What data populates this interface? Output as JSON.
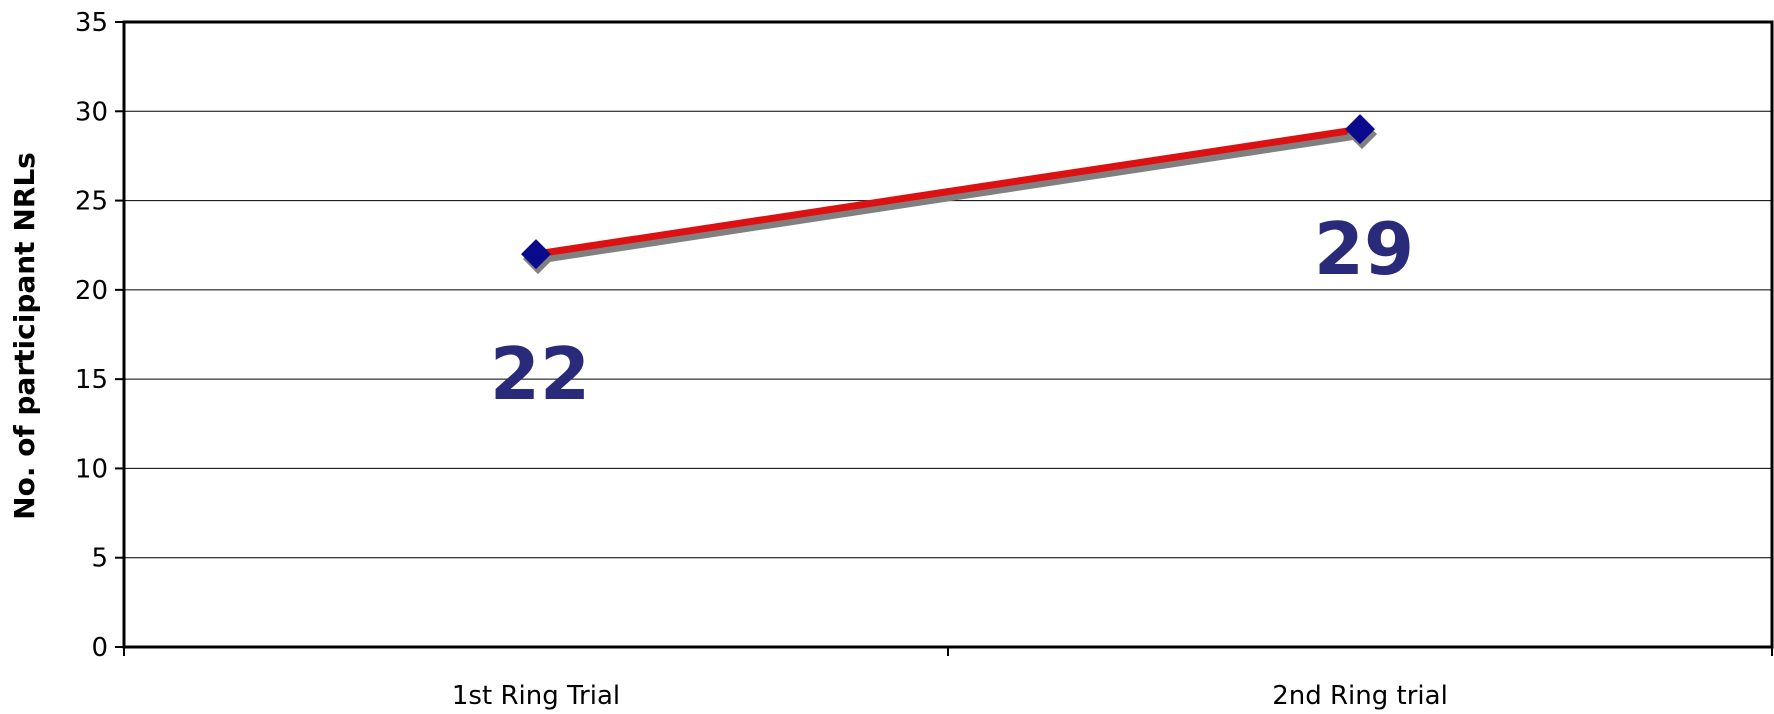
{
  "chart_data": {
    "type": "line",
    "title": "",
    "xlabel": "",
    "ylabel": "No. of participant NRLs",
    "categories": [
      "1st Ring Trial",
      "2nd Ring trial"
    ],
    "series": [
      {
        "values": [
          22,
          29
        ],
        "data_labels": [
          "22",
          "29"
        ]
      }
    ],
    "ylim": [
      0,
      35
    ],
    "yticks": [
      0,
      5,
      10,
      15,
      20,
      25,
      30,
      35
    ],
    "ytick_labels": [
      "0",
      "5",
      "10",
      "15",
      "20",
      "25",
      "30",
      "35"
    ],
    "grid": true,
    "legend": "none",
    "colors": {
      "line": "#dd1111",
      "shadow": "#808080",
      "marker": "#0a0a8c",
      "data_label": "#2a2a7a",
      "grid": "#000000"
    }
  }
}
